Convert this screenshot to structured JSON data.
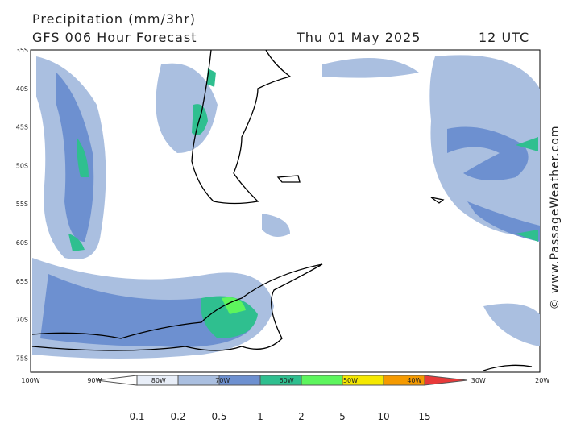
{
  "header": {
    "title": "Precipitation (mm/3hr)",
    "subtitle": "GFS 006 Hour Forecast",
    "date": "Thu 01 May 2025",
    "time": "12 UTC"
  },
  "map": {
    "latitudes": [
      "35S",
      "40S",
      "45S",
      "50S",
      "55S",
      "60S",
      "65S",
      "70S",
      "75S"
    ],
    "longitudes": [
      "100W",
      "90W",
      "80W",
      "70W",
      "60W",
      "50W",
      "40W",
      "30W",
      "20W"
    ]
  },
  "legend": {
    "levels": [
      0.1,
      0.2,
      0.5,
      1,
      2,
      5,
      10,
      15
    ]
  },
  "credit": "© www.PassageWeather.com"
}
